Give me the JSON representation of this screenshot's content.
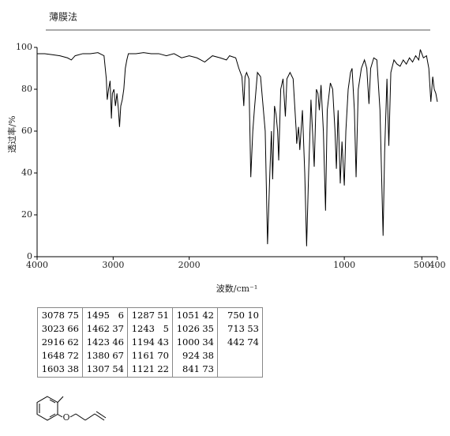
{
  "chart_data": {
    "type": "line",
    "title": "薄膜法",
    "xlabel": "波数/cm⁻¹",
    "ylabel": "透过率/%",
    "x": [
      4000,
      3900,
      3800,
      3700,
      3600,
      3550,
      3500,
      3400,
      3300,
      3200,
      3120,
      3090,
      3078,
      3060,
      3040,
      3023,
      3010,
      2990,
      2970,
      2950,
      2930,
      2916,
      2900,
      2880,
      2860,
      2840,
      2820,
      2800,
      2700,
      2600,
      2500,
      2400,
      2300,
      2200,
      2100,
      2000,
      1950,
      1900,
      1850,
      1800,
      1760,
      1740,
      1700,
      1680,
      1660,
      1648,
      1640,
      1630,
      1615,
      1603,
      1590,
      1580,
      1560,
      1540,
      1510,
      1495,
      1480,
      1470,
      1462,
      1450,
      1440,
      1430,
      1423,
      1410,
      1395,
      1380,
      1370,
      1350,
      1330,
      1310,
      1307,
      1295,
      1287,
      1270,
      1255,
      1243,
      1230,
      1215,
      1205,
      1194,
      1180,
      1170,
      1161,
      1150,
      1135,
      1121,
      1110,
      1090,
      1075,
      1060,
      1051,
      1040,
      1026,
      1015,
      1000,
      990,
      975,
      960,
      950,
      935,
      924,
      910,
      890,
      870,
      855,
      841,
      830,
      810,
      790,
      770,
      760,
      750,
      740,
      725,
      713,
      700,
      680,
      660,
      640,
      620,
      600,
      580,
      560,
      540,
      520,
      510,
      500,
      490,
      470,
      455,
      442,
      430,
      420,
      410,
      400
    ],
    "y": [
      97,
      97,
      96.5,
      96,
      95,
      94,
      96,
      97,
      97,
      97.5,
      96,
      85,
      75,
      80,
      84,
      66,
      78,
      80,
      72,
      78,
      70,
      62,
      72,
      75,
      80,
      90,
      94,
      97,
      97,
      97.5,
      97,
      97,
      96,
      97,
      95,
      96,
      95,
      93,
      96,
      95,
      94,
      96,
      95,
      90,
      86,
      72,
      86,
      88,
      85,
      38,
      60,
      70,
      88,
      86,
      60,
      6,
      40,
      60,
      37,
      72,
      68,
      60,
      46,
      80,
      85,
      67,
      85,
      88,
      85,
      60,
      54,
      62,
      51,
      70,
      40,
      5,
      40,
      75,
      60,
      43,
      80,
      78,
      70,
      82,
      60,
      22,
      70,
      83,
      80,
      60,
      42,
      70,
      35,
      55,
      34,
      60,
      80,
      88,
      90,
      70,
      38,
      80,
      90,
      94,
      90,
      73,
      90,
      95,
      94,
      70,
      40,
      10,
      50,
      85,
      53,
      88,
      94,
      92,
      91,
      94,
      92,
      95,
      93,
      96,
      94,
      99,
      97,
      95,
      96,
      90,
      74,
      86,
      80,
      78,
      74
    ],
    "xlim": [
      4000,
      400
    ],
    "ylim": [
      0,
      100
    ],
    "xticks": [
      4000,
      3000,
      2000,
      1000,
      500,
      400
    ],
    "yticks": [
      0,
      20,
      40,
      60,
      80,
      100
    ],
    "xscale_break": 2000,
    "color": "#000000"
  },
  "peak_table": {
    "columns": [
      [
        [
          3078,
          75
        ],
        [
          3023,
          66
        ],
        [
          2916,
          62
        ],
        [
          1648,
          72
        ],
        [
          1603,
          38
        ]
      ],
      [
        [
          1495,
          6
        ],
        [
          1462,
          37
        ],
        [
          1423,
          46
        ],
        [
          1380,
          67
        ],
        [
          1307,
          54
        ]
      ],
      [
        [
          1287,
          51
        ],
        [
          1243,
          5
        ],
        [
          1194,
          43
        ],
        [
          1161,
          70
        ],
        [
          1121,
          22
        ]
      ],
      [
        [
          1051,
          42
        ],
        [
          1026,
          35
        ],
        [
          1000,
          34
        ],
        [
          924,
          38
        ],
        [
          841,
          73
        ]
      ],
      [
        [
          750,
          10
        ],
        [
          713,
          53
        ],
        [
          442,
          74
        ]
      ]
    ]
  },
  "structure": {
    "atom_label": "O"
  }
}
